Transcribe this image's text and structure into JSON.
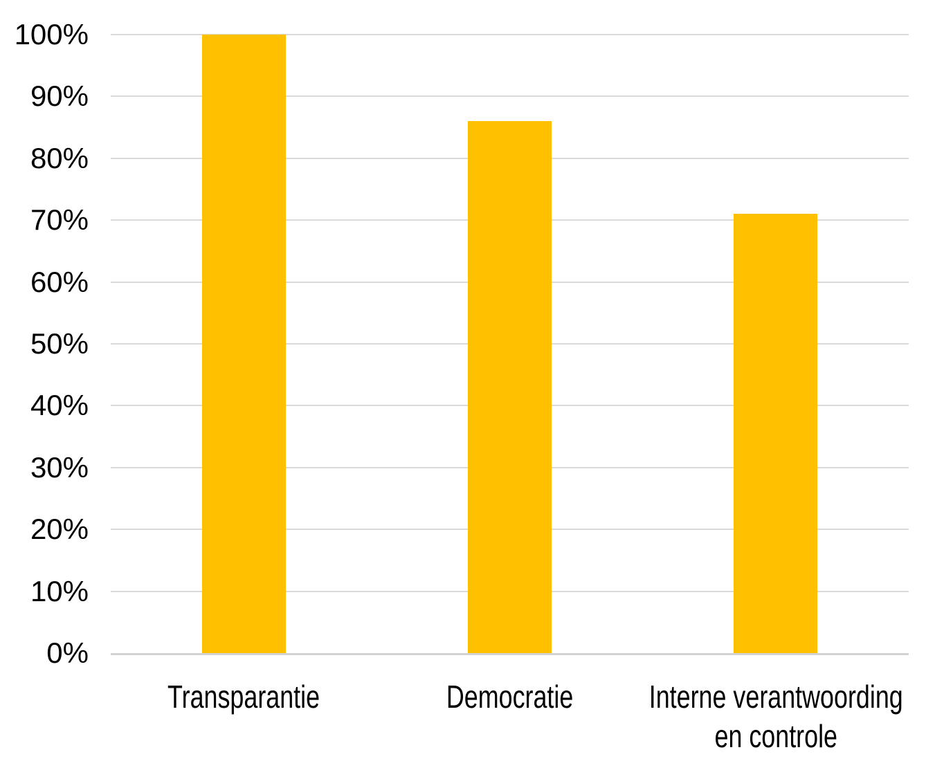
{
  "chart_data": {
    "type": "bar",
    "title": "",
    "categories": [
      "Transparantie",
      "Democratie",
      "Interne verantwoording\nen controle"
    ],
    "values": [
      100,
      86,
      71
    ],
    "value_unit": "%",
    "xlabel": "",
    "ylabel": "",
    "ylim": [
      0,
      100
    ],
    "ytick_step": 10,
    "ytick_labels": [
      "0%",
      "10%",
      "20%",
      "30%",
      "40%",
      "50%",
      "60%",
      "70%",
      "80%",
      "90%",
      "100%"
    ],
    "grid": true,
    "legend": false,
    "colors": {
      "bar": "#FFC000",
      "gridline": "#D9D9D9",
      "axis": "#D2D2D2",
      "text": "#000000",
      "background": "#FFFFFF"
    }
  }
}
